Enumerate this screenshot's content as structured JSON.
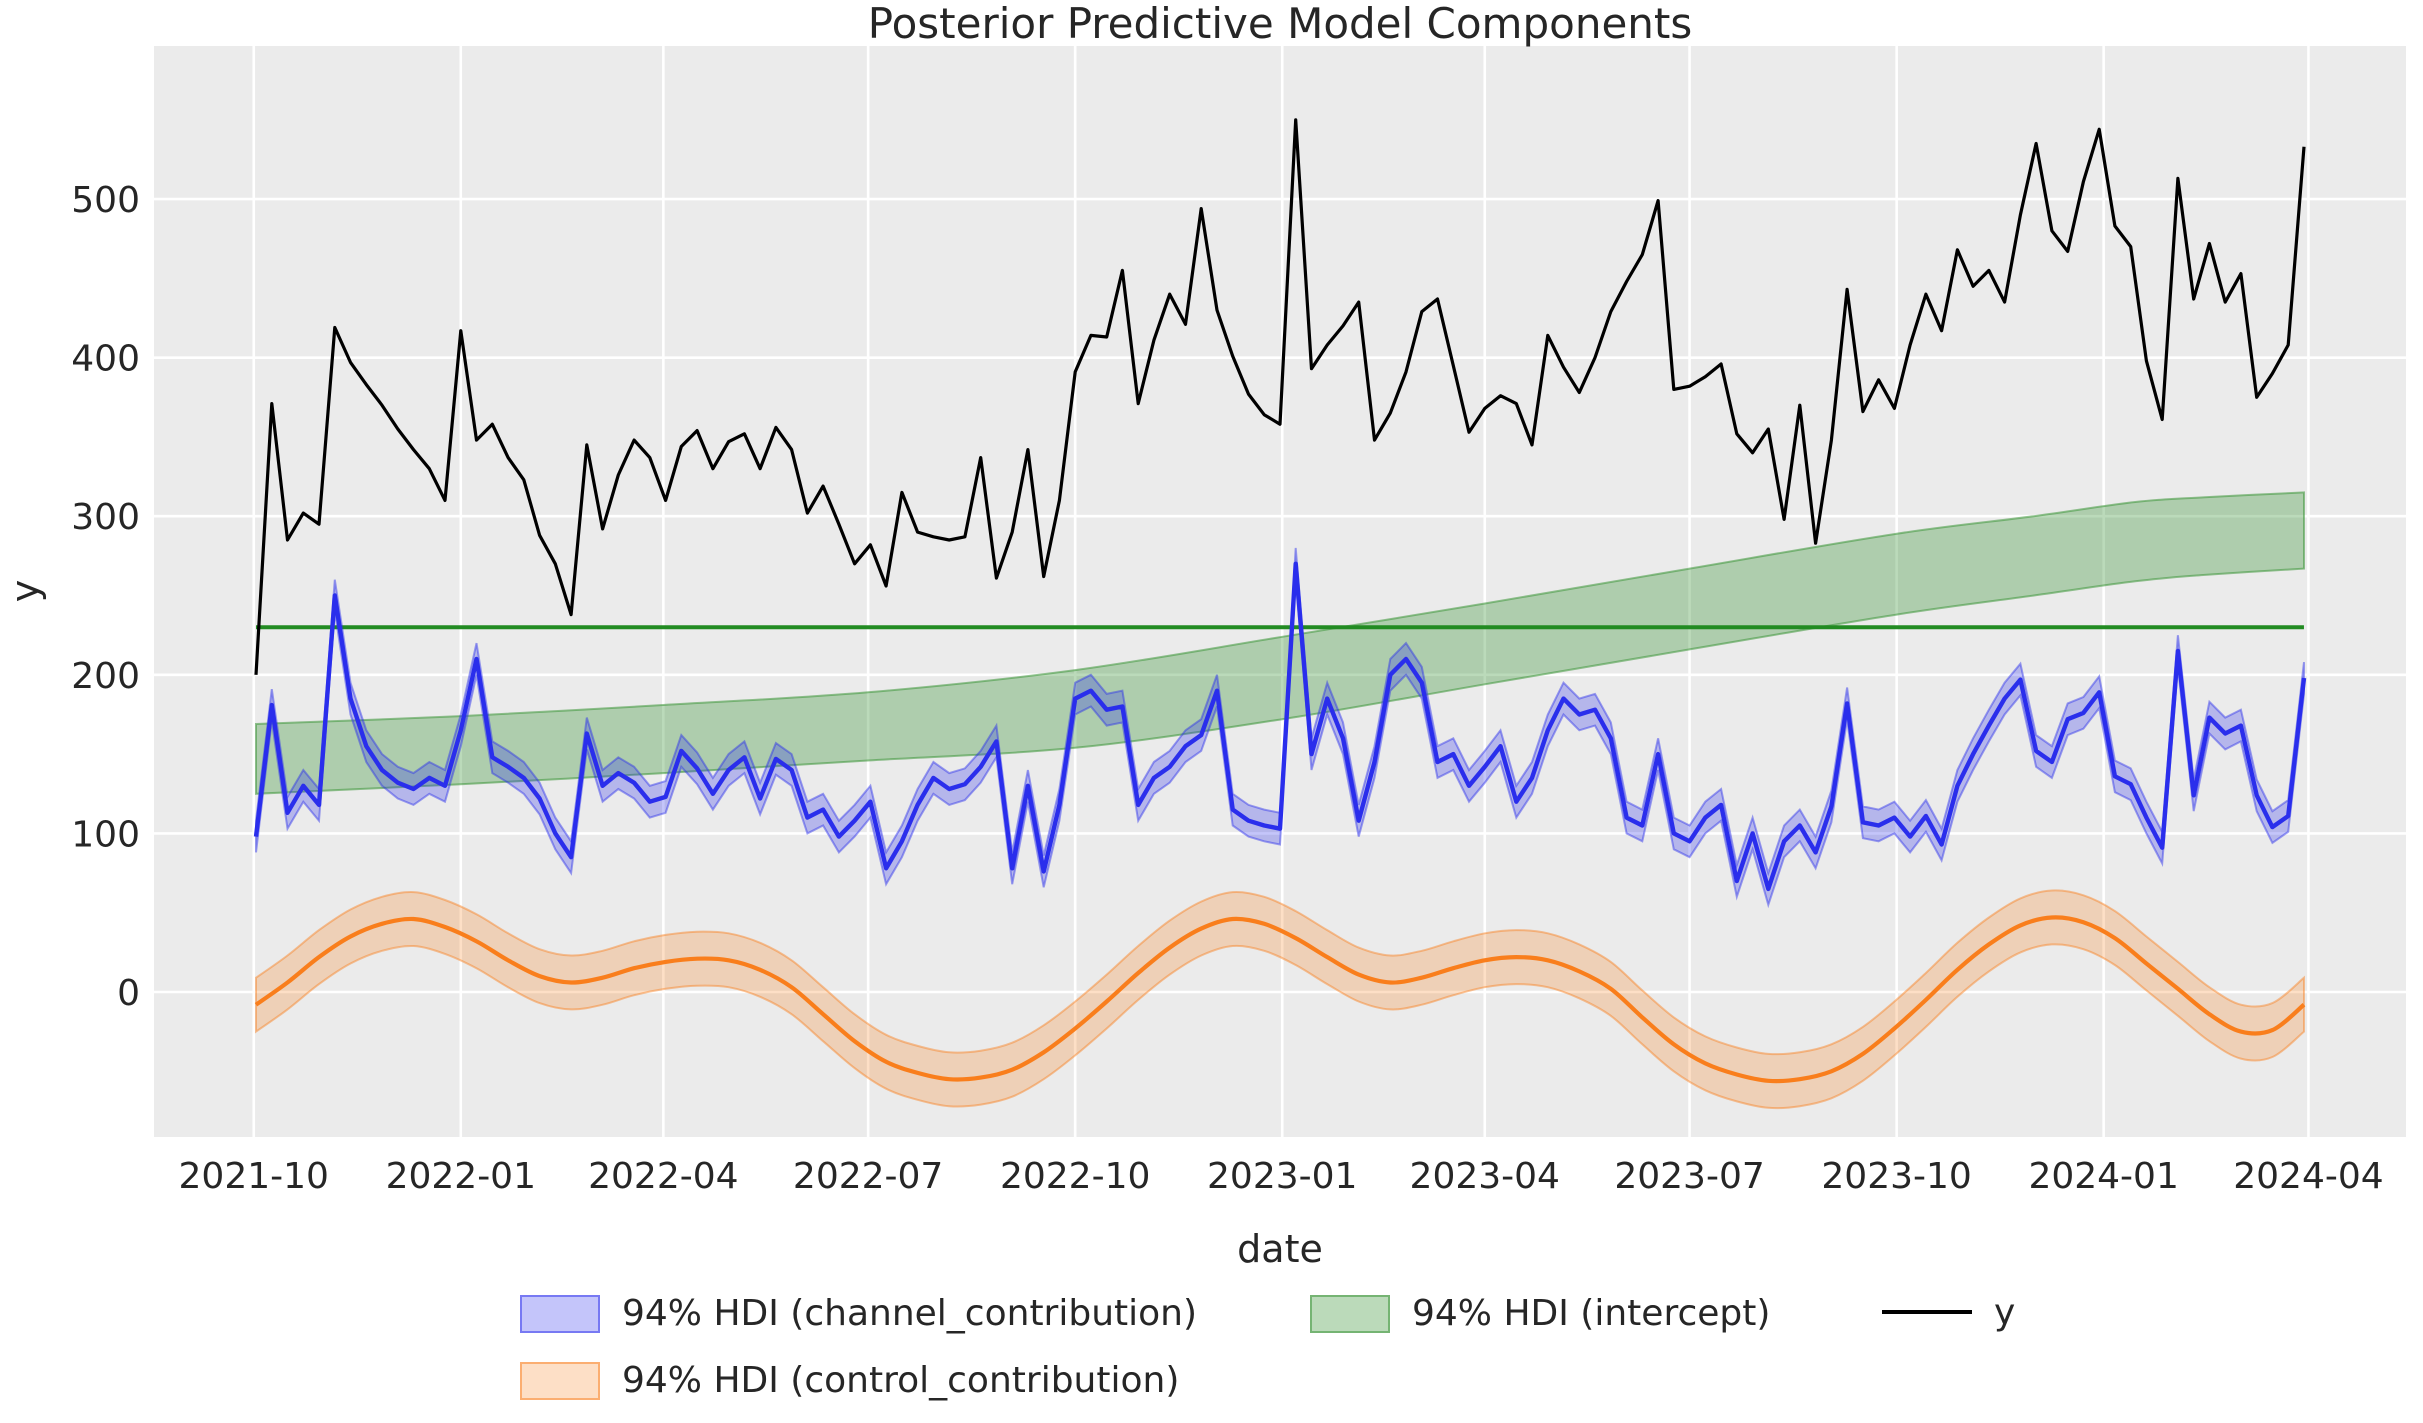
{
  "figure": {
    "title": "Posterior Predictive Model Components"
  },
  "chart_data": {
    "type": "line",
    "title": "Posterior Predictive Model Components",
    "xlabel": "date",
    "ylabel": "y",
    "grid": true,
    "legend_position": "bottom",
    "background_color": "#ebebeb",
    "x_tick_labels": [
      "2021-10",
      "2022-01",
      "2022-04",
      "2022-07",
      "2022-10",
      "2023-01",
      "2023-04",
      "2023-07",
      "2023-10",
      "2024-01",
      "2024-04"
    ],
    "y_ticks": [
      0,
      100,
      200,
      300,
      400,
      500
    ],
    "x_start_date": "2021-10-02",
    "x_end_date": "2024-03-30",
    "x_freq_days": 7,
    "n_points": 131,
    "legend": [
      {
        "label": "94% HDI (channel_contribution)",
        "swatch": "band",
        "color": "#2a2eec"
      },
      {
        "label": "94% HDI (control_contribution)",
        "swatch": "band",
        "color": "#f97e1c"
      },
      {
        "label": "94% HDI (intercept)",
        "swatch": "band",
        "color": "#3c9639"
      },
      {
        "label": "y",
        "swatch": "line",
        "color": "#000000"
      }
    ],
    "series": {
      "y_series": {
        "name": "y",
        "color": "#000000",
        "values": [
          200,
          371,
          285,
          302,
          295,
          419,
          397,
          383,
          370,
          355,
          342,
          330,
          310,
          417,
          348,
          358,
          337,
          323,
          288,
          270,
          238,
          345,
          292,
          326,
          348,
          337,
          310,
          344,
          354,
          330,
          347,
          352,
          330,
          356,
          342,
          302,
          319,
          295,
          270,
          282,
          256,
          315,
          290,
          287,
          285,
          287,
          337,
          261,
          290,
          342,
          262,
          310,
          391,
          414,
          413,
          455,
          371,
          411,
          440,
          421,
          494,
          430,
          401,
          377,
          364,
          358,
          550,
          393,
          408,
          420,
          435,
          348,
          365,
          391,
          429,
          437,
          395,
          353,
          368,
          376,
          371,
          345,
          414,
          394,
          378,
          400,
          429,
          448,
          465,
          499,
          380,
          382,
          388,
          396,
          352,
          340,
          355,
          298,
          370,
          283,
          348,
          443,
          366,
          386,
          368,
          408,
          440,
          417,
          468,
          445,
          455,
          435,
          490,
          535,
          480,
          467,
          511,
          544,
          483,
          470,
          398,
          361,
          513,
          437,
          472,
          435,
          453,
          375,
          390,
          408,
          533
        ]
      },
      "channel_contribution": {
        "name": "channel_contribution",
        "hdi_label": "94% HDI (channel_contribution)",
        "line_color": "#2a2eec",
        "hdi_halfwidth": 10,
        "mean": [
          98,
          181,
          113,
          130,
          118,
          250,
          185,
          155,
          140,
          132,
          128,
          135,
          130,
          165,
          210,
          148,
          142,
          135,
          122,
          100,
          85,
          163,
          130,
          138,
          132,
          120,
          123,
          152,
          141,
          125,
          140,
          148,
          122,
          147,
          140,
          110,
          115,
          98,
          108,
          120,
          78,
          95,
          118,
          135,
          128,
          131,
          142,
          158,
          78,
          130,
          76,
          118,
          185,
          190,
          178,
          180,
          118,
          135,
          142,
          155,
          162,
          190,
          115,
          108,
          105,
          103,
          270,
          150,
          185,
          160,
          108,
          145,
          200,
          210,
          195,
          145,
          150,
          130,
          142,
          155,
          120,
          135,
          165,
          185,
          175,
          178,
          160,
          110,
          105,
          150,
          100,
          95,
          110,
          118,
          70,
          100,
          65,
          95,
          105,
          88,
          117,
          182,
          107,
          105,
          110,
          98,
          111,
          93,
          130,
          150,
          168,
          185,
          197,
          152,
          145,
          172,
          176,
          189,
          136,
          131,
          110,
          91,
          215,
          124,
          173,
          163,
          168,
          124,
          104,
          111,
          198
        ]
      },
      "control_contribution": {
        "name": "control_contribution",
        "hdi_label": "94% HDI (control_contribution)",
        "line_color": "#f97e1c",
        "hdi_halfwidth": 17,
        "anchors": [
          [
            "2021-10-02",
            -8
          ],
          [
            "2021-10-16",
            6
          ],
          [
            "2021-10-30",
            22
          ],
          [
            "2021-11-13",
            35
          ],
          [
            "2021-11-27",
            43
          ],
          [
            "2021-12-11",
            46
          ],
          [
            "2021-12-25",
            41
          ],
          [
            "2022-01-08",
            32
          ],
          [
            "2022-01-22",
            20
          ],
          [
            "2022-02-05",
            10
          ],
          [
            "2022-02-19",
            6
          ],
          [
            "2022-03-05",
            9
          ],
          [
            "2022-03-19",
            15
          ],
          [
            "2022-04-02",
            19
          ],
          [
            "2022-04-16",
            21
          ],
          [
            "2022-04-30",
            20
          ],
          [
            "2022-05-14",
            14
          ],
          [
            "2022-05-28",
            3
          ],
          [
            "2022-06-11",
            -14
          ],
          [
            "2022-06-25",
            -31
          ],
          [
            "2022-07-09",
            -44
          ],
          [
            "2022-07-23",
            -51
          ],
          [
            "2022-08-06",
            -55
          ],
          [
            "2022-08-20",
            -54
          ],
          [
            "2022-09-03",
            -49
          ],
          [
            "2022-09-17",
            -38
          ],
          [
            "2022-10-01",
            -23
          ],
          [
            "2022-10-15",
            -6
          ],
          [
            "2022-10-29",
            12
          ],
          [
            "2022-11-12",
            28
          ],
          [
            "2022-11-26",
            40
          ],
          [
            "2022-12-10",
            46
          ],
          [
            "2022-12-24",
            43
          ],
          [
            "2023-01-07",
            34
          ],
          [
            "2023-01-21",
            22
          ],
          [
            "2023-02-04",
            11
          ],
          [
            "2023-02-18",
            6
          ],
          [
            "2023-03-04",
            9
          ],
          [
            "2023-03-18",
            15
          ],
          [
            "2023-04-01",
            20
          ],
          [
            "2023-04-15",
            22
          ],
          [
            "2023-04-29",
            20
          ],
          [
            "2023-05-13",
            13
          ],
          [
            "2023-05-27",
            2
          ],
          [
            "2023-06-10",
            -16
          ],
          [
            "2023-06-24",
            -33
          ],
          [
            "2023-07-08",
            -45
          ],
          [
            "2023-07-22",
            -52
          ],
          [
            "2023-08-05",
            -56
          ],
          [
            "2023-08-19",
            -55
          ],
          [
            "2023-09-02",
            -50
          ],
          [
            "2023-09-16",
            -39
          ],
          [
            "2023-09-30",
            -23
          ],
          [
            "2023-10-14",
            -5
          ],
          [
            "2023-10-28",
            14
          ],
          [
            "2023-11-11",
            30
          ],
          [
            "2023-11-25",
            42
          ],
          [
            "2023-12-09",
            47
          ],
          [
            "2023-12-23",
            44
          ],
          [
            "2024-01-06",
            34
          ],
          [
            "2024-01-20",
            18
          ],
          [
            "2024-02-03",
            2
          ],
          [
            "2024-02-17",
            -14
          ],
          [
            "2024-03-02",
            -25
          ],
          [
            "2024-03-16",
            -24
          ],
          [
            "2024-03-30",
            -8
          ]
        ]
      },
      "intercept": {
        "name": "intercept",
        "hdi_label": "94% HDI (intercept)",
        "band_color": "#3c9639",
        "line_color": "#228b22",
        "mean_line_value": 230,
        "band_anchors": [
          [
            "2021-10-02",
            125,
            169
          ],
          [
            "2022-01-01",
            131,
            174
          ],
          [
            "2022-04-01",
            138,
            181
          ],
          [
            "2022-07-01",
            146,
            189
          ],
          [
            "2022-10-01",
            154,
            203
          ],
          [
            "2023-01-01",
            172,
            224
          ],
          [
            "2023-04-01",
            194,
            245
          ],
          [
            "2023-07-01",
            216,
            267
          ],
          [
            "2023-10-01",
            238,
            289
          ],
          [
            "2023-12-01",
            250,
            300
          ],
          [
            "2024-01-15",
            259,
            309
          ],
          [
            "2024-02-15",
            263,
            312
          ],
          [
            "2024-03-30",
            267,
            315
          ]
        ]
      }
    }
  }
}
